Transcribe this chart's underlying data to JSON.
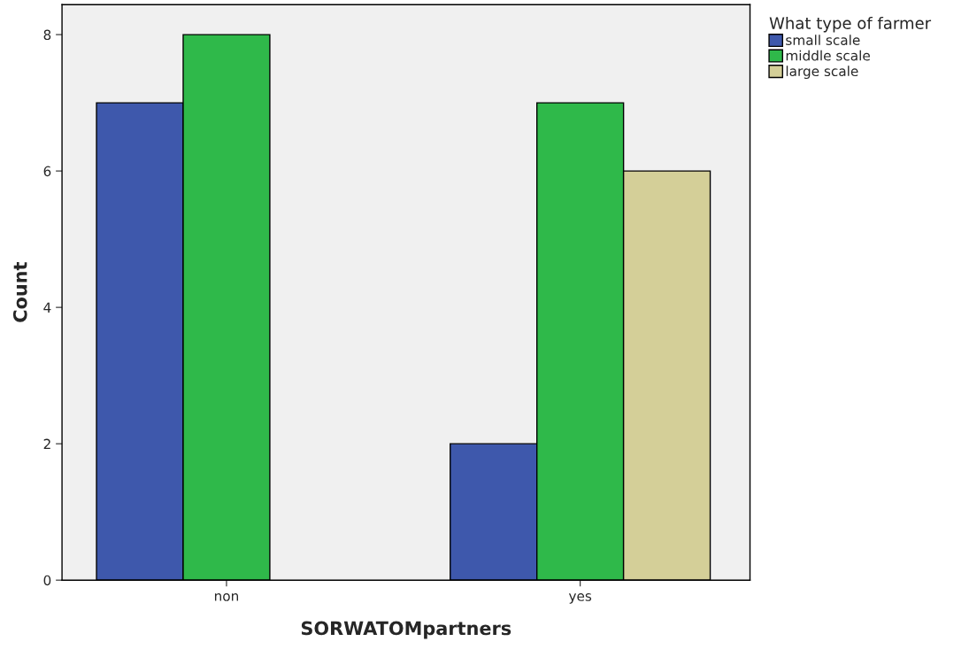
{
  "chart_data": {
    "type": "bar",
    "xlabel": "SORWATOMpartners",
    "ylabel": "Count",
    "legend_title": "What type of farmer",
    "categories": [
      "non",
      "yes"
    ],
    "series": [
      {
        "name": "small scale",
        "color": "#3e58ac",
        "values": [
          7,
          2
        ]
      },
      {
        "name": "middle scale",
        "color": "#2fb94a",
        "values": [
          8,
          7
        ]
      },
      {
        "name": "large scale",
        "color": "#d4cf98",
        "values": [
          null,
          6
        ]
      }
    ],
    "ylim": [
      0,
      8.44
    ],
    "yticks": [
      0,
      2,
      4,
      6,
      8
    ],
    "grid": false,
    "legend": "top right"
  }
}
